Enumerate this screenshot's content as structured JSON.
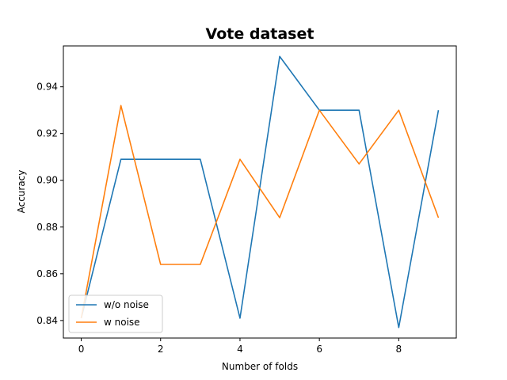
{
  "chart_data": {
    "type": "line",
    "title": "Vote dataset",
    "xlabel": "Number of folds",
    "ylabel": "Accuracy",
    "xlim": [
      -0.45,
      9.45
    ],
    "ylim": [
      0.8325,
      0.9575
    ],
    "xticks": [
      0,
      2,
      4,
      6,
      8
    ],
    "yticks": [
      0.84,
      0.86,
      0.88,
      0.9,
      0.92,
      0.94
    ],
    "ytick_labels": [
      "0.84",
      "0.86",
      "0.88",
      "0.90",
      "0.92",
      "0.94"
    ],
    "grid": false,
    "legend": "lower-left",
    "x": [
      0,
      1,
      2,
      3,
      4,
      5,
      6,
      7,
      8,
      9
    ],
    "series": [
      {
        "name": "w/o noise",
        "color": "#1f77b4",
        "values": [
          0.841,
          0.909,
          0.909,
          0.909,
          0.841,
          0.953,
          0.93,
          0.93,
          0.837,
          0.93
        ]
      },
      {
        "name": "w noise",
        "color": "#ff7f0e",
        "values": [
          0.841,
          0.932,
          0.864,
          0.864,
          0.909,
          0.884,
          0.93,
          0.907,
          0.93,
          0.884
        ]
      }
    ]
  }
}
